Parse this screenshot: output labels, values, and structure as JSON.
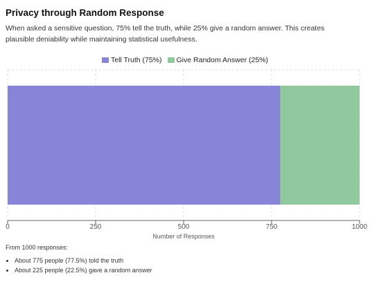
{
  "header": {
    "title": "Privacy through Random Response",
    "description": "When asked a sensitive question, 75% tell the truth, while 25% give a random answer. This creates plausible deniability while maintaining statistical usefulness."
  },
  "legend": [
    {
      "label": "Tell Truth (75%)",
      "color": "#8884d8"
    },
    {
      "label": "Give Random Answer (25%)",
      "color": "#91c99e"
    }
  ],
  "chart_data": {
    "type": "bar",
    "orientation": "horizontal",
    "stacked": true,
    "categories": [
      ""
    ],
    "series": [
      {
        "name": "Tell Truth (75%)",
        "values": [
          775
        ],
        "color": "#8884d8"
      },
      {
        "name": "Give Random Answer (25%)",
        "values": [
          225
        ],
        "color": "#91c99e"
      }
    ],
    "xlim": [
      0,
      1000
    ],
    "xticks": [
      0,
      250,
      500,
      750,
      1000
    ],
    "tick_labels": [
      "0",
      "250",
      "500",
      "750",
      "1000"
    ],
    "xlabel": "Number of Responses",
    "ylabel": "",
    "grid": true,
    "legend_position": "top"
  },
  "footer": {
    "intro": "From 1000 responses:",
    "bullets": [
      "About 775 people (77.5%) told the truth",
      "About 225 people (22.5%) gave a random answer"
    ]
  }
}
